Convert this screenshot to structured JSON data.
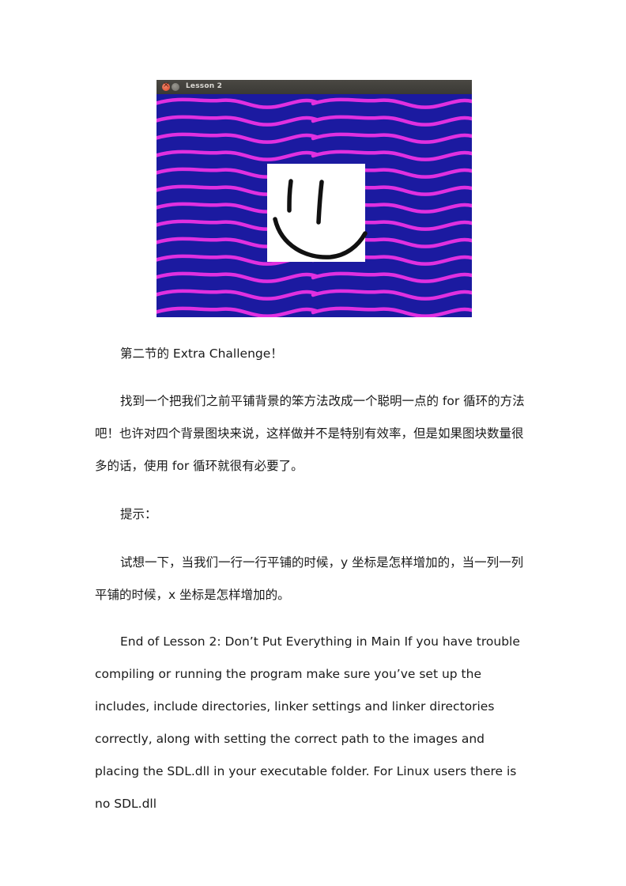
{
  "window": {
    "title": "Lesson 2",
    "background_color": "#1b1aa0",
    "stripe_color": "#e030e0",
    "icons": [
      "close-icon",
      "minimize-icon"
    ]
  },
  "text": {
    "heading": "第二节的 Extra Challenge！",
    "para1": "找到一个把我们之前平铺背景的笨方法改成一个聪明一点的 for 循环的方法吧！也许对四个背景图块来说，这样做并不是特别有效率，但是如果图块数量很多的话，使用 for 循环就很有必要了。",
    "hint_label": "提示：",
    "hint": "试想一下，当我们一行一行平铺的时候，y 坐标是怎样增加的，当一列一列平铺的时候，x 坐标是怎样增加的。",
    "english": "End of Lesson 2: Don’t Put Everything in Main If you have trouble compiling or running the program make sure you’ve set up the includes, include directories, linker settings and linker directories correctly, along with setting the correct path to the images and placing the SDL.dll in your executable folder. For Linux users there is no SDL.dll"
  }
}
